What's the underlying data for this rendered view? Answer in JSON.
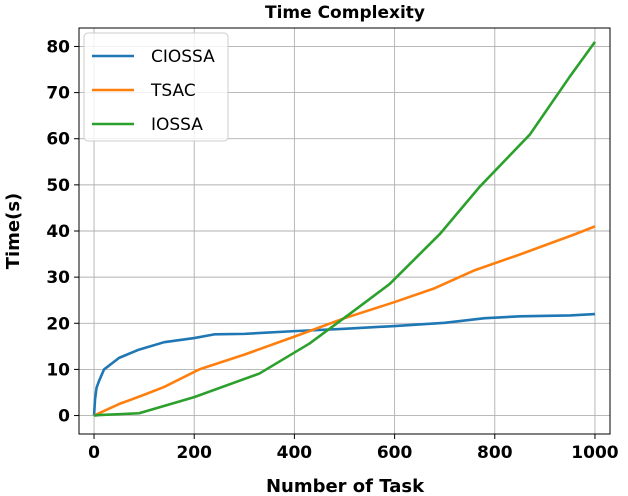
{
  "chart_data": {
    "type": "line",
    "title": "Time Complexity",
    "xlabel": "Number of Task",
    "ylabel": "Time(s)",
    "xlim": [
      -30,
      1030
    ],
    "ylim": [
      -4,
      84
    ],
    "xticks": [
      0,
      200,
      400,
      600,
      800,
      1000
    ],
    "yticks": [
      0,
      10,
      20,
      30,
      40,
      50,
      60,
      70,
      80
    ],
    "xtick_labels": [
      "0",
      "200",
      "400",
      "600",
      "800",
      "1000"
    ],
    "ytick_labels": [
      "0",
      "10",
      "20",
      "30",
      "40",
      "50",
      "60",
      "70",
      "80"
    ],
    "grid": true,
    "legend_position": "top-left",
    "series": [
      {
        "name": "CIOSSA",
        "color": "#1f77b4",
        "x": [
          0,
          2,
          5,
          10,
          20,
          50,
          90,
          140,
          200,
          240,
          300,
          400,
          500,
          600,
          700,
          780,
          850,
          950,
          1000
        ],
        "y": [
          0,
          3.5,
          6,
          7.5,
          10,
          12.5,
          14.3,
          15.9,
          16.8,
          17.6,
          17.7,
          18.3,
          18.8,
          19.4,
          20.1,
          21.1,
          21.5,
          21.7,
          22
        ]
      },
      {
        "name": "TSAC",
        "color": "#ff7f0e",
        "x": [
          0,
          50,
          100,
          140,
          210,
          300,
          400,
          500,
          600,
          680,
          760,
          850,
          960,
          1000
        ],
        "y": [
          0,
          2.5,
          4.5,
          6.2,
          10,
          13.2,
          17.1,
          21.1,
          24.6,
          27.6,
          31.5,
          34.9,
          39.3,
          41
        ]
      },
      {
        "name": "IOSSA",
        "color": "#2ca02c",
        "x": [
          0,
          10,
          90,
          200,
          330,
          430,
          510,
          590,
          690,
          770,
          870,
          950,
          1000
        ],
        "y": [
          0,
          0.1,
          0.5,
          4,
          9.1,
          15.6,
          22,
          28.5,
          39.3,
          49.6,
          60.9,
          73.5,
          81
        ]
      }
    ]
  }
}
